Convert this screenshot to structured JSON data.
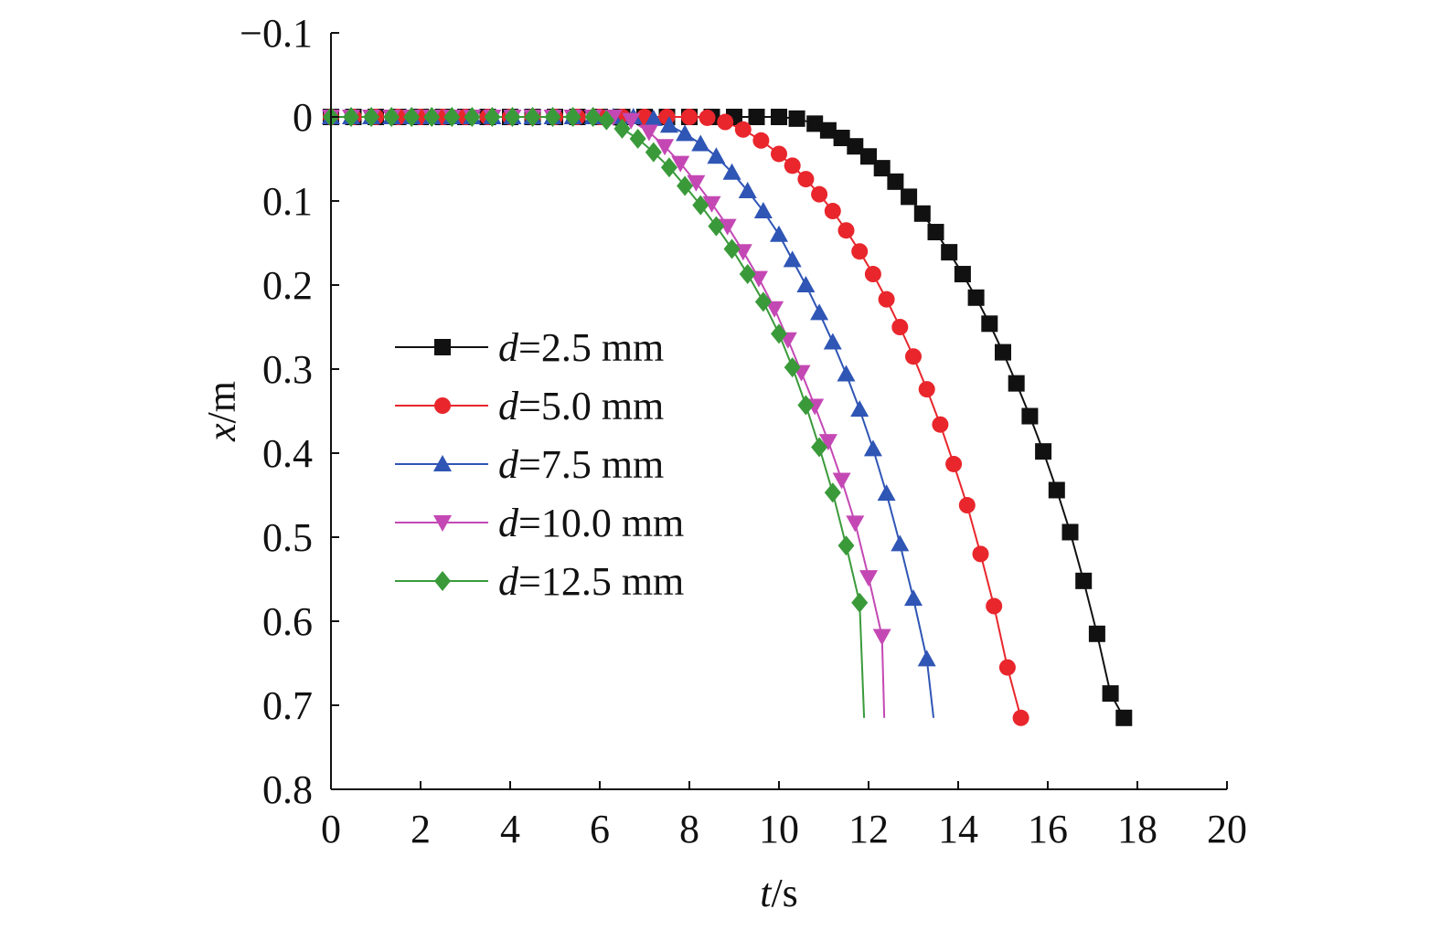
{
  "chart_data": {
    "type": "line",
    "xlabel": {
      "var": "t",
      "unit": "/s"
    },
    "ylabel": {
      "var": "x",
      "unit": "/m"
    },
    "xlim": [
      0,
      20
    ],
    "ylim": [
      -0.1,
      0.8
    ],
    "y_inverted": true,
    "grid": false,
    "legend_position": "left-middle",
    "x_ticks": [
      0,
      2,
      4,
      6,
      8,
      10,
      12,
      14,
      16,
      18,
      20
    ],
    "y_ticks": [
      -0.1,
      0,
      0.1,
      0.2,
      0.3,
      0.4,
      0.5,
      0.6,
      0.7,
      0.8
    ],
    "x_tick_labels": [
      "0",
      "2",
      "4",
      "6",
      "8",
      "10",
      "12",
      "14",
      "16",
      "18",
      "20"
    ],
    "y_tick_labels": [
      "−0.1",
      "0",
      "0.1",
      "0.2",
      "0.3",
      "0.4",
      "0.5",
      "0.6",
      "0.7",
      "0.8"
    ],
    "series": [
      {
        "name": "d=2.5 mm",
        "name_var": "d",
        "name_rest": "=2.5 mm",
        "color": "#111111",
        "marker": "square",
        "x": [
          0,
          0.5,
          1,
          1.5,
          2,
          2.5,
          3,
          3.5,
          4,
          4.5,
          5,
          5.5,
          6,
          6.5,
          7,
          7.5,
          8,
          8.5,
          9,
          9.5,
          10,
          10.4,
          10.8,
          11.1,
          11.4,
          11.7,
          12.0,
          12.3,
          12.6,
          12.9,
          13.2,
          13.5,
          13.8,
          14.1,
          14.4,
          14.7,
          15.0,
          15.3,
          15.6,
          15.9,
          16.2,
          16.5,
          16.8,
          17.1,
          17.4,
          17.7
        ],
        "y": [
          0,
          0,
          0,
          0,
          0,
          0,
          0,
          0,
          0,
          0,
          0,
          0,
          0,
          0,
          0,
          0,
          0,
          0,
          0,
          0,
          0,
          0.002,
          0.008,
          0.016,
          0.025,
          0.035,
          0.047,
          0.061,
          0.077,
          0.095,
          0.115,
          0.137,
          0.161,
          0.187,
          0.215,
          0.246,
          0.28,
          0.317,
          0.356,
          0.398,
          0.444,
          0.494,
          0.552,
          0.615,
          0.686,
          0.715
        ],
        "end_x": 17.8,
        "end_y": 0.715
      },
      {
        "name": "d=5.0 mm",
        "name_var": "d",
        "name_rest": "=5.0 mm",
        "color": "#e8262c",
        "marker": "circle",
        "x": [
          0,
          0.5,
          1,
          1.5,
          2,
          2.5,
          3,
          3.5,
          4,
          4.5,
          5,
          5.5,
          6,
          6.5,
          7,
          7.5,
          8,
          8.4,
          8.8,
          9.2,
          9.6,
          10.0,
          10.3,
          10.6,
          10.9,
          11.2,
          11.5,
          11.8,
          12.1,
          12.4,
          12.7,
          13.0,
          13.3,
          13.6,
          13.9,
          14.2,
          14.5,
          14.8,
          15.1,
          15.4
        ],
        "y": [
          0,
          0,
          0,
          0,
          0,
          0,
          0,
          0,
          0,
          0,
          0,
          0,
          0,
          0,
          0,
          0,
          0,
          0.001,
          0.006,
          0.015,
          0.028,
          0.044,
          0.058,
          0.074,
          0.092,
          0.112,
          0.135,
          0.16,
          0.187,
          0.217,
          0.25,
          0.285,
          0.324,
          0.366,
          0.413,
          0.462,
          0.52,
          0.582,
          0.655,
          0.715
        ],
        "end_x": 15.5,
        "end_y": 0.715
      },
      {
        "name": "d=7.5 mm",
        "name_var": "d",
        "name_rest": "=7.5 mm",
        "color": "#2f55b5",
        "marker": "triangle-up",
        "x": [
          0,
          0.45,
          0.9,
          1.35,
          1.8,
          2.25,
          2.7,
          3.15,
          3.6,
          4.05,
          4.5,
          4.95,
          5.4,
          5.85,
          6.3,
          6.75,
          7.2,
          7.55,
          7.9,
          8.25,
          8.6,
          8.95,
          9.3,
          9.65,
          10.0,
          10.3,
          10.6,
          10.9,
          11.2,
          11.5,
          11.8,
          12.1,
          12.4,
          12.7,
          13.0,
          13.3
        ],
        "y": [
          0,
          0,
          0,
          0,
          0,
          0,
          0,
          0,
          0,
          0,
          0,
          0,
          0,
          0,
          0,
          0,
          0.002,
          0.01,
          0.02,
          0.032,
          0.047,
          0.066,
          0.088,
          0.112,
          0.14,
          0.17,
          0.2,
          0.233,
          0.268,
          0.306,
          0.348,
          0.395,
          0.448,
          0.508,
          0.573,
          0.645
        ],
        "end_x": 13.45,
        "end_y": 0.715
      },
      {
        "name": "d=10.0 mm",
        "name_var": "d",
        "name_rest": "=10.0 mm",
        "color": "#c448b4",
        "marker": "triangle-down",
        "x": [
          0,
          0.45,
          0.9,
          1.35,
          1.8,
          2.25,
          2.7,
          3.15,
          3.6,
          4.05,
          4.5,
          4.95,
          5.4,
          5.85,
          6.3,
          6.7,
          7.1,
          7.45,
          7.8,
          8.15,
          8.5,
          8.85,
          9.2,
          9.55,
          9.9,
          10.2,
          10.5,
          10.8,
          11.1,
          11.4,
          11.7,
          12.0,
          12.3
        ],
        "y": [
          0,
          0,
          0,
          0,
          0,
          0,
          0,
          0,
          0,
          0,
          0,
          0,
          0,
          0,
          0,
          0.004,
          0.018,
          0.035,
          0.055,
          0.078,
          0.103,
          0.13,
          0.16,
          0.192,
          0.228,
          0.265,
          0.304,
          0.344,
          0.386,
          0.432,
          0.483,
          0.548,
          0.618
        ],
        "end_x": 12.35,
        "end_y": 0.715
      },
      {
        "name": "d=12.5 mm",
        "name_var": "d",
        "name_rest": "=12.5 mm",
        "color": "#3a9a3a",
        "marker": "diamond",
        "x": [
          0,
          0.45,
          0.9,
          1.35,
          1.8,
          2.25,
          2.7,
          3.15,
          3.6,
          4.05,
          4.5,
          4.95,
          5.4,
          5.85,
          6.15,
          6.5,
          6.85,
          7.2,
          7.55,
          7.9,
          8.25,
          8.6,
          8.95,
          9.3,
          9.65,
          10.0,
          10.3,
          10.6,
          10.9,
          11.2,
          11.5,
          11.8
        ],
        "y": [
          0,
          0,
          0,
          0,
          0,
          0,
          0,
          0,
          0,
          0,
          0,
          0,
          0,
          0,
          0.004,
          0.014,
          0.026,
          0.042,
          0.06,
          0.082,
          0.105,
          0.13,
          0.157,
          0.187,
          0.22,
          0.258,
          0.298,
          0.343,
          0.393,
          0.447,
          0.51,
          0.578
        ],
        "end_x": 11.9,
        "end_y": 0.715
      }
    ]
  }
}
